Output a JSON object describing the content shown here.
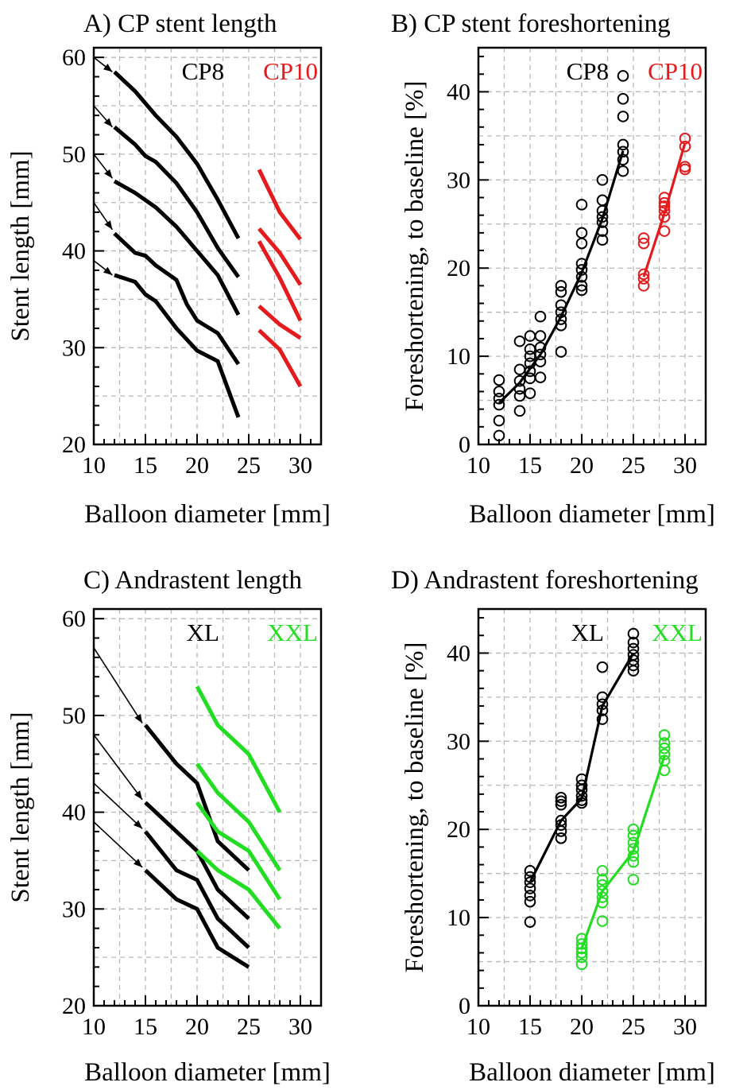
{
  "chart_data": [
    {
      "id": "A",
      "type": "line",
      "title": "A) CP stent length",
      "xlabel": "Balloon diameter [mm]",
      "ylabel": "Stent length [mm]",
      "xlim": [
        10,
        32
      ],
      "ylim": [
        20,
        61
      ],
      "xticks": [
        10,
        15,
        20,
        25,
        30
      ],
      "yticks": [
        20,
        30,
        40,
        50,
        60
      ],
      "xminor_step": 1,
      "yminor_step": 2,
      "grid": true,
      "legend": [
        {
          "text": "CP8",
          "color": "#000000",
          "position": "top-center"
        },
        {
          "text": "CP10",
          "color": "#e41a1c",
          "position": "top-right"
        }
      ],
      "arrows": [
        {
          "from": [
            10,
            60
          ],
          "to": [
            11.8,
            58.5
          ]
        },
        {
          "from": [
            10,
            55
          ],
          "to": [
            11.8,
            52.8
          ]
        },
        {
          "from": [
            10,
            50
          ],
          "to": [
            11.8,
            47.5
          ]
        },
        {
          "from": [
            10,
            45
          ],
          "to": [
            11.8,
            42.2
          ]
        },
        {
          "from": [
            10,
            39
          ],
          "to": [
            11.8,
            37.5
          ]
        }
      ],
      "series": [
        {
          "name": "CP8",
          "color": "#000000",
          "x": [
            12,
            14,
            16,
            18,
            20,
            22,
            24
          ],
          "y": [
            58.5,
            56.5,
            54,
            51.8,
            49,
            45.3,
            41.3
          ]
        },
        {
          "name": "CP8",
          "color": "#000000",
          "x": [
            12,
            14,
            15,
            16,
            18,
            20,
            22,
            24
          ],
          "y": [
            52.8,
            51,
            49.8,
            49.2,
            47,
            44,
            40.3,
            37.3
          ]
        },
        {
          "name": "CP8",
          "color": "#000000",
          "x": [
            12,
            14,
            16,
            18,
            20,
            22,
            24
          ],
          "y": [
            47.2,
            46,
            44.5,
            42.5,
            40,
            37.5,
            33.4
          ]
        },
        {
          "name": "CP8",
          "color": "#000000",
          "x": [
            12,
            14,
            15,
            16,
            18,
            19,
            20,
            22,
            24
          ],
          "y": [
            41.8,
            39.8,
            39.5,
            38.5,
            37,
            34.5,
            32.8,
            31.5,
            28.3
          ]
        },
        {
          "name": "CP8",
          "color": "#000000",
          "x": [
            12,
            14,
            15,
            16,
            18,
            20,
            22,
            24
          ],
          "y": [
            37.5,
            36.8,
            35.5,
            34.8,
            32,
            29.7,
            28.6,
            22.8
          ]
        },
        {
          "name": "CP10",
          "color": "#e41a1c",
          "x": [
            26,
            28,
            30
          ],
          "y": [
            48.4,
            44,
            41.2
          ]
        },
        {
          "name": "CP10",
          "color": "#e41a1c",
          "x": [
            26,
            28,
            30
          ],
          "y": [
            42.3,
            39.8,
            36.5
          ]
        },
        {
          "name": "CP10",
          "color": "#e41a1c",
          "x": [
            26,
            28,
            30
          ],
          "y": [
            41,
            37.2,
            32.8
          ]
        },
        {
          "name": "CP10",
          "color": "#e41a1c",
          "x": [
            26,
            28,
            30
          ],
          "y": [
            34.3,
            32.4,
            31
          ]
        },
        {
          "name": "CP10",
          "color": "#e41a1c",
          "x": [
            26,
            28,
            30
          ],
          "y": [
            31.8,
            29.8,
            26
          ]
        }
      ]
    },
    {
      "id": "B",
      "type": "scatter",
      "title": "B) CP stent foreshortening",
      "xlabel": "Balloon diameter [mm]",
      "ylabel": "Foreshortening, to baseline [%]",
      "xlim": [
        10,
        32
      ],
      "ylim": [
        0,
        45
      ],
      "xticks": [
        10,
        15,
        20,
        25,
        30
      ],
      "yticks": [
        0,
        10,
        20,
        30,
        40
      ],
      "xminor_step": 1,
      "yminor_step": 2,
      "grid": true,
      "legend": [
        {
          "text": "CP8",
          "color": "#000000",
          "position": "top-center"
        },
        {
          "text": "CP10",
          "color": "#e41a1c",
          "position": "top-right"
        }
      ],
      "series": [
        {
          "name": "CP8",
          "color": "#000000",
          "points": [
            [
              12,
              1
            ],
            [
              12,
              2.7
            ],
            [
              12,
              4.5
            ],
            [
              12,
              5.2
            ],
            [
              12,
              6
            ],
            [
              12,
              7.3
            ],
            [
              14,
              3.8
            ],
            [
              14,
              5.5
            ],
            [
              14,
              6.3
            ],
            [
              14,
              7.2
            ],
            [
              14,
              8.5
            ],
            [
              14,
              11.7
            ],
            [
              15,
              5.8
            ],
            [
              15,
              7.5
            ],
            [
              15,
              8.3
            ],
            [
              15,
              9.2
            ],
            [
              15,
              10
            ],
            [
              15,
              10.8
            ],
            [
              15,
              12.3
            ],
            [
              16,
              7.6
            ],
            [
              16,
              9.4
            ],
            [
              16,
              10.2
            ],
            [
              16,
              11
            ],
            [
              16,
              12.3
            ],
            [
              16,
              14.5
            ],
            [
              18,
              10.5
            ],
            [
              18,
              13.5
            ],
            [
              18,
              14.2
            ],
            [
              18,
              15
            ],
            [
              18,
              15.8
            ],
            [
              18,
              17.3
            ],
            [
              18,
              18
            ],
            [
              20,
              17.5
            ],
            [
              20,
              18
            ],
            [
              20,
              19
            ],
            [
              20,
              19.8
            ],
            [
              20,
              20.5
            ],
            [
              20,
              22.8
            ],
            [
              20,
              24
            ],
            [
              20,
              27.2
            ],
            [
              22,
              23.2
            ],
            [
              22,
              24.2
            ],
            [
              22,
              25.2
            ],
            [
              22,
              25.8
            ],
            [
              22,
              26.5
            ],
            [
              22,
              27.7
            ],
            [
              22,
              30
            ],
            [
              24,
              31
            ],
            [
              24,
              32.3
            ],
            [
              24,
              33.2
            ],
            [
              24,
              34
            ],
            [
              24,
              37.2
            ],
            [
              24,
              39.2
            ],
            [
              24,
              41.8
            ]
          ],
          "fit": {
            "x": [
              12,
              14,
              16,
              18,
              20,
              22,
              24
            ],
            "y": [
              4.7,
              7,
              10.2,
              14.5,
              19.5,
              25.6,
              33.3
            ]
          }
        },
        {
          "name": "CP10",
          "color": "#e41a1c",
          "points": [
            [
              26,
              18
            ],
            [
              26,
              18.8
            ],
            [
              26,
              19.3
            ],
            [
              26,
              22.8
            ],
            [
              26,
              23.4
            ],
            [
              28,
              24.2
            ],
            [
              28,
              25.8
            ],
            [
              28,
              26.5
            ],
            [
              28,
              27
            ],
            [
              28,
              27.4
            ],
            [
              28,
              28
            ],
            [
              30,
              31.2
            ],
            [
              30,
              31.5
            ],
            [
              30,
              33.8
            ],
            [
              30,
              34.7
            ]
          ],
          "fit": {
            "x": [
              26,
              28,
              30
            ],
            "y": [
              19,
              26.2,
              34.2
            ]
          }
        }
      ]
    },
    {
      "id": "C",
      "type": "line",
      "title": "C) Andrastent length",
      "xlabel": "Balloon diameter [mm]",
      "ylabel": "Stent length [mm]",
      "xlim": [
        10,
        32
      ],
      "ylim": [
        20,
        61
      ],
      "xticks": [
        10,
        15,
        20,
        25,
        30
      ],
      "yticks": [
        20,
        30,
        40,
        50,
        60
      ],
      "xminor_step": 1,
      "yminor_step": 2,
      "grid": true,
      "legend": [
        {
          "text": "XL",
          "color": "#000000",
          "position": "top-center"
        },
        {
          "text": "XXL",
          "color": "#22dd22",
          "position": "top-right"
        }
      ],
      "arrows": [
        {
          "from": [
            10,
            57
          ],
          "to": [
            14.7,
            49.2
          ]
        },
        {
          "from": [
            10,
            48
          ],
          "to": [
            14.7,
            41.3
          ]
        },
        {
          "from": [
            10,
            43
          ],
          "to": [
            14.7,
            38.3
          ]
        },
        {
          "from": [
            10,
            39
          ],
          "to": [
            14.7,
            34.3
          ]
        }
      ],
      "series": [
        {
          "name": "XL",
          "color": "#000000",
          "x": [
            15,
            18,
            20,
            22,
            25
          ],
          "y": [
            49,
            45,
            43,
            37,
            34
          ]
        },
        {
          "name": "XL",
          "color": "#000000",
          "x": [
            15,
            18,
            20,
            22,
            25
          ],
          "y": [
            41,
            38,
            36,
            32,
            29
          ]
        },
        {
          "name": "XL",
          "color": "#000000",
          "x": [
            15,
            18,
            20,
            22,
            25
          ],
          "y": [
            38,
            34,
            33,
            29,
            26
          ]
        },
        {
          "name": "XL",
          "color": "#000000",
          "x": [
            15,
            18,
            20,
            22,
            25
          ],
          "y": [
            34,
            31,
            30,
            26,
            24
          ]
        },
        {
          "name": "XXL",
          "color": "#22dd22",
          "x": [
            20,
            22,
            25,
            28
          ],
          "y": [
            53,
            49,
            46,
            40
          ]
        },
        {
          "name": "XXL",
          "color": "#22dd22",
          "x": [
            20,
            22,
            25,
            28
          ],
          "y": [
            45,
            42,
            39,
            34
          ]
        },
        {
          "name": "XXL",
          "color": "#22dd22",
          "x": [
            20,
            22,
            25,
            28
          ],
          "y": [
            41,
            38,
            36,
            31
          ]
        },
        {
          "name": "XXL",
          "color": "#22dd22",
          "x": [
            20,
            22,
            25,
            28
          ],
          "y": [
            36,
            34,
            32,
            28
          ]
        }
      ]
    },
    {
      "id": "D",
      "type": "scatter",
      "title": "D) Andrastent foreshortening",
      "xlabel": "Balloon diameter [mm]",
      "ylabel": "Foreshortening, to baseline [%]",
      "xlim": [
        10,
        32
      ],
      "ylim": [
        0,
        45
      ],
      "xticks": [
        10,
        15,
        20,
        25,
        30
      ],
      "yticks": [
        0,
        10,
        20,
        30,
        40
      ],
      "xminor_step": 1,
      "yminor_step": 2,
      "grid": true,
      "legend": [
        {
          "text": "XL",
          "color": "#000000",
          "position": "top-center"
        },
        {
          "text": "XXL",
          "color": "#22dd22",
          "position": "top-right"
        }
      ],
      "series": [
        {
          "name": "XL",
          "color": "#000000",
          "points": [
            [
              15,
              9.5
            ],
            [
              15,
              11.8
            ],
            [
              15,
              12.5
            ],
            [
              15,
              13.3
            ],
            [
              15,
              14
            ],
            [
              15,
              14.6
            ],
            [
              15,
              15.3
            ],
            [
              18,
              19
            ],
            [
              18,
              19.8
            ],
            [
              18,
              20.5
            ],
            [
              18,
              21
            ],
            [
              18,
              22.8
            ],
            [
              18,
              23.2
            ],
            [
              18,
              23.6
            ],
            [
              20,
              23
            ],
            [
              20,
              23.3
            ],
            [
              20,
              23.8
            ],
            [
              20,
              24.5
            ],
            [
              20,
              25
            ],
            [
              20,
              25.7
            ],
            [
              22,
              32.5
            ],
            [
              22,
              33.5
            ],
            [
              22,
              34.2
            ],
            [
              22,
              35
            ],
            [
              22,
              38.4
            ],
            [
              25,
              38
            ],
            [
              25,
              38.6
            ],
            [
              25,
              39.2
            ],
            [
              25,
              39.8
            ],
            [
              25,
              40.5
            ],
            [
              25,
              41.2
            ],
            [
              25,
              42.2
            ]
          ],
          "fit": {
            "x": [
              15,
              18,
              20,
              22,
              25
            ],
            "y": [
              14,
              21,
              23.5,
              34,
              40
            ]
          }
        },
        {
          "name": "XXL",
          "color": "#22dd22",
          "points": [
            [
              20,
              4.7
            ],
            [
              20,
              5.5
            ],
            [
              20,
              6
            ],
            [
              20,
              6.5
            ],
            [
              20,
              7
            ],
            [
              20,
              7.6
            ],
            [
              22,
              9.6
            ],
            [
              22,
              11.7
            ],
            [
              22,
              12.3
            ],
            [
              22,
              13
            ],
            [
              22,
              13.7
            ],
            [
              22,
              14.3
            ],
            [
              22,
              15.3
            ],
            [
              25,
              14.3
            ],
            [
              25,
              16.3
            ],
            [
              25,
              17
            ],
            [
              25,
              17.8
            ],
            [
              25,
              18.5
            ],
            [
              25,
              19.3
            ],
            [
              25,
              20
            ],
            [
              28,
              26.7
            ],
            [
              28,
              27.8
            ],
            [
              28,
              28.5
            ],
            [
              28,
              29.2
            ],
            [
              28,
              29.8
            ],
            [
              28,
              30.7
            ]
          ],
          "fit": {
            "x": [
              20,
              22,
              25,
              28
            ],
            "y": [
              6.5,
              13,
              17.5,
              28.3
            ]
          }
        }
      ]
    }
  ]
}
